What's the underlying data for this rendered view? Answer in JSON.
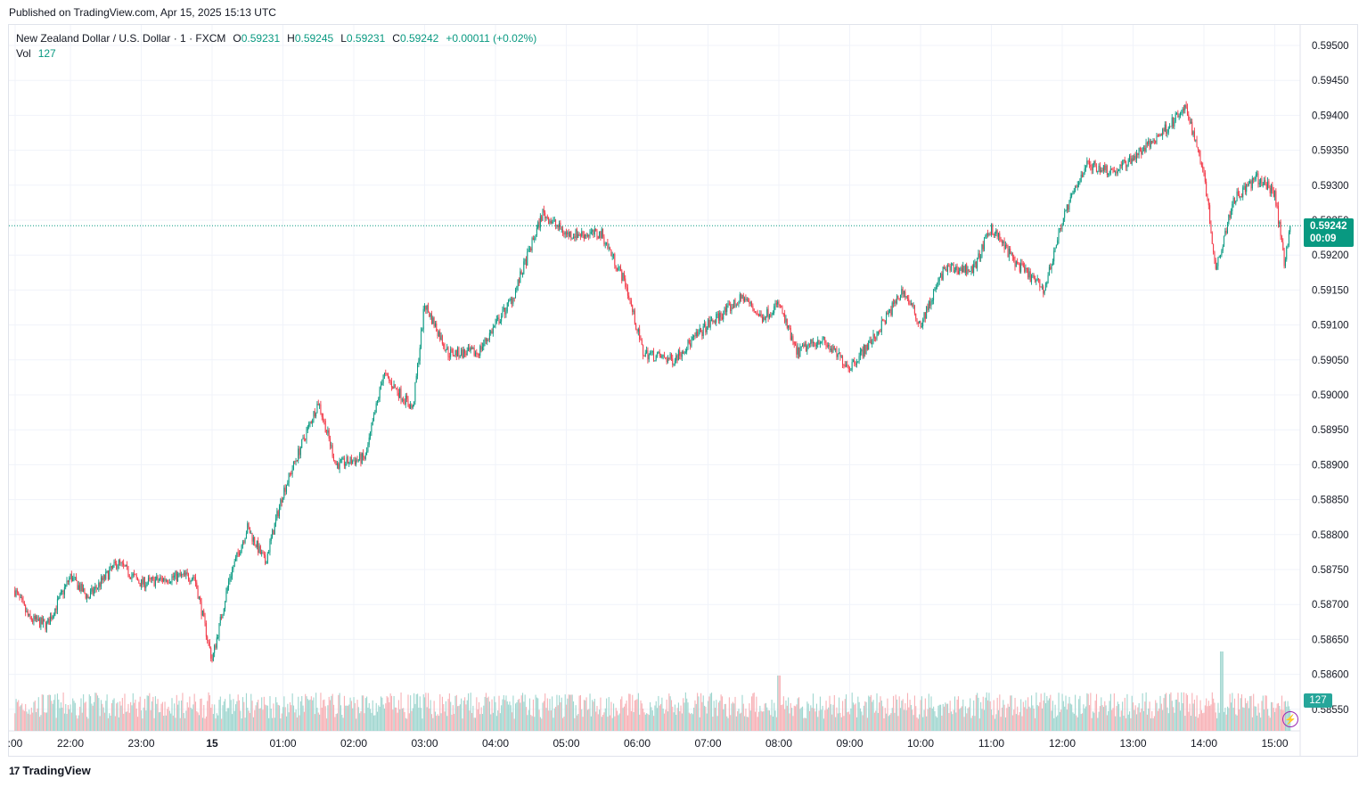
{
  "header": {
    "published": "Published on TradingView.com, Apr 15, 2025 15:13 UTC"
  },
  "legend": {
    "symbol": "New Zealand Dollar / U.S. Dollar · 1 · FXCM",
    "open_label": "O",
    "open": "0.59231",
    "high_label": "H",
    "high": "0.59245",
    "low_label": "L",
    "low": "0.59231",
    "close_label": "C",
    "close": "0.59242",
    "change": "+0.00011 (+0.02%)",
    "vol_label": "Vol",
    "vol": "127"
  },
  "price_tag": {
    "price": "0.59242",
    "countdown": "00:09"
  },
  "volume_tag": "127",
  "footer": {
    "logo_text": "TradingView",
    "logo_mark": "17"
  },
  "colors": {
    "up": "#089981",
    "down": "#f23645",
    "up_vol": "#9fd6cf",
    "down_vol": "#f7b0b5",
    "grid": "#f0f3fa",
    "axis_text": "#131722",
    "bolt": "#9c27b0"
  },
  "chart_data": {
    "type": "candlestick",
    "ylim": [
      0.5853,
      0.5952
    ],
    "yticks": [
      "0.59500",
      "0.59450",
      "0.59400",
      "0.59350",
      "0.59300",
      "0.59250",
      "0.59200",
      "0.59150",
      "0.59100",
      "0.59050",
      "0.59000",
      "0.58950",
      "0.58900",
      "0.58850",
      "0.58800",
      "0.58750",
      "0.58700",
      "0.58650",
      "0.58600",
      "0.58550"
    ],
    "xticks": [
      ":00",
      "22:00",
      "23:00",
      "15",
      "01:00",
      "02:00",
      "03:00",
      "04:00",
      "05:00",
      "06:00",
      "07:00",
      "08:00",
      "09:00",
      "10:00",
      "11:00",
      "12:00",
      "13:00",
      "14:00",
      "15:00"
    ],
    "last_price": 0.59242,
    "close_path": [
      {
        "t": "21:13",
        "p": 0.5872
      },
      {
        "t": "21:25",
        "p": 0.5868
      },
      {
        "t": "21:40",
        "p": 0.5867
      },
      {
        "t": "22:00",
        "p": 0.5874
      },
      {
        "t": "22:15",
        "p": 0.5871
      },
      {
        "t": "22:40",
        "p": 0.5876
      },
      {
        "t": "23:00",
        "p": 0.5873
      },
      {
        "t": "23:30",
        "p": 0.5874
      },
      {
        "t": "23:45",
        "p": 0.5874
      },
      {
        "t": "00:00",
        "p": 0.5862
      },
      {
        "t": "00:15",
        "p": 0.5874
      },
      {
        "t": "00:30",
        "p": 0.5881
      },
      {
        "t": "00:45",
        "p": 0.5876
      },
      {
        "t": "01:00",
        "p": 0.5886
      },
      {
        "t": "01:30",
        "p": 0.5899
      },
      {
        "t": "01:45",
        "p": 0.589
      },
      {
        "t": "02:10",
        "p": 0.5891
      },
      {
        "t": "02:25",
        "p": 0.5903
      },
      {
        "t": "02:50",
        "p": 0.5898
      },
      {
        "t": "03:00",
        "p": 0.5913
      },
      {
        "t": "03:20",
        "p": 0.5906
      },
      {
        "t": "03:45",
        "p": 0.5906
      },
      {
        "t": "04:15",
        "p": 0.5914
      },
      {
        "t": "04:40",
        "p": 0.5926
      },
      {
        "t": "05:00",
        "p": 0.5923
      },
      {
        "t": "05:30",
        "p": 0.5923
      },
      {
        "t": "05:50",
        "p": 0.5916
      },
      {
        "t": "06:05",
        "p": 0.5906
      },
      {
        "t": "06:30",
        "p": 0.5905
      },
      {
        "t": "07:00",
        "p": 0.591
      },
      {
        "t": "07:30",
        "p": 0.5914
      },
      {
        "t": "07:45",
        "p": 0.5911
      },
      {
        "t": "08:00",
        "p": 0.5913
      },
      {
        "t": "08:15",
        "p": 0.5906
      },
      {
        "t": "08:35",
        "p": 0.5908
      },
      {
        "t": "09:00",
        "p": 0.5904
      },
      {
        "t": "09:20",
        "p": 0.5908
      },
      {
        "t": "09:45",
        "p": 0.5915
      },
      {
        "t": "10:00",
        "p": 0.591
      },
      {
        "t": "10:20",
        "p": 0.5918
      },
      {
        "t": "10:45",
        "p": 0.5918
      },
      {
        "t": "11:00",
        "p": 0.5924
      },
      {
        "t": "11:20",
        "p": 0.5919
      },
      {
        "t": "11:45",
        "p": 0.5915
      },
      {
        "t": "12:00",
        "p": 0.5925
      },
      {
        "t": "12:20",
        "p": 0.5933
      },
      {
        "t": "12:45",
        "p": 0.5932
      },
      {
        "t": "13:15",
        "p": 0.5936
      },
      {
        "t": "13:45",
        "p": 0.5941
      },
      {
        "t": "14:00",
        "p": 0.5932
      },
      {
        "t": "14:10",
        "p": 0.5918
      },
      {
        "t": "14:25",
        "p": 0.5928
      },
      {
        "t": "14:45",
        "p": 0.5931
      },
      {
        "t": "15:00",
        "p": 0.5929
      },
      {
        "t": "15:08",
        "p": 0.5919
      },
      {
        "t": "15:13",
        "p": 0.59242
      }
    ],
    "volume_peaks": [
      {
        "t": "08:00",
        "v": "high"
      },
      {
        "t": "14:15",
        "v": "highest"
      }
    ]
  }
}
